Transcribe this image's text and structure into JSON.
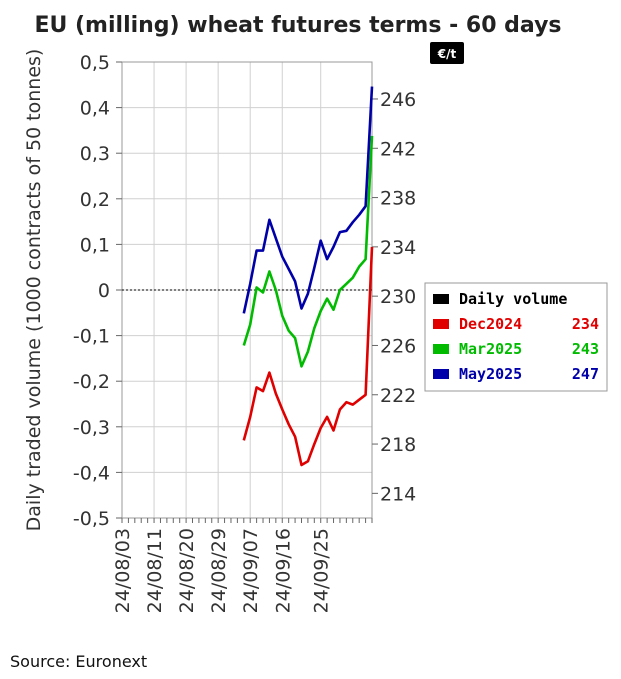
{
  "source_text": "Source: Euronext",
  "chart_data": {
    "type": "line",
    "title": "EU (milling) wheat futures terms - 60 days",
    "ylabel": "Daily traded volume (1000 contracts of 50 tonnes)",
    "y2_unit": "€/t",
    "ylim": [
      -0.5,
      0.5
    ],
    "y_ticks": [
      "0,5",
      "0,4",
      "0,3",
      "0,2",
      "0,1",
      "0",
      "-0,1",
      "-0,2",
      "-0,3",
      "-0,4",
      "-0,5"
    ],
    "y2lim": [
      212,
      249
    ],
    "y2_ticks": [
      "246",
      "242",
      "238",
      "234",
      "230",
      "226",
      "222",
      "218",
      "214"
    ],
    "x_ticks": [
      "24/08/03",
      "24/08/11",
      "24/08/20",
      "24/08/29",
      "24/09/07",
      "24/09/16",
      "24/09/25"
    ],
    "legend": [
      {
        "name": "Daily volume",
        "value": "",
        "color": "#000000"
      },
      {
        "name": "Dec2024",
        "value": "234",
        "color": "#e00000"
      },
      {
        "name": "Mar2025",
        "value": "243",
        "color": "#00bb00"
      },
      {
        "name": "May2025",
        "value": "247",
        "color": "#0000aa"
      }
    ],
    "series": [
      {
        "name": "Dec2024",
        "axis": "right",
        "values": [
          218.3,
          220.2,
          222.6,
          222.3,
          223.8,
          222.1,
          220.8,
          219.6,
          218.6,
          216.3,
          216.6,
          218.0,
          219.3,
          220.2,
          219.1,
          220.8,
          221.4,
          221.2,
          221.6,
          222.0,
          234.0
        ]
      },
      {
        "name": "Mar2025",
        "axis": "right",
        "values": [
          226.0,
          227.7,
          230.7,
          230.3,
          232.0,
          230.5,
          228.4,
          227.2,
          226.6,
          224.3,
          225.5,
          227.4,
          228.8,
          229.8,
          228.9,
          230.5,
          231.0,
          231.5,
          232.4,
          233.0,
          243.0
        ]
      },
      {
        "name": "May2025",
        "axis": "right",
        "values": [
          228.6,
          231.0,
          233.7,
          233.7,
          236.2,
          234.7,
          233.2,
          232.2,
          231.2,
          229.0,
          230.2,
          232.3,
          234.5,
          233.0,
          234.0,
          235.2,
          235.3,
          236.0,
          236.6,
          237.3,
          247.0
        ]
      }
    ],
    "x_start_index": 19,
    "x_end_index": 39,
    "x_tick_indices": [
      0,
      5,
      10,
      15,
      20,
      25,
      31
    ],
    "x_count": 40
  }
}
